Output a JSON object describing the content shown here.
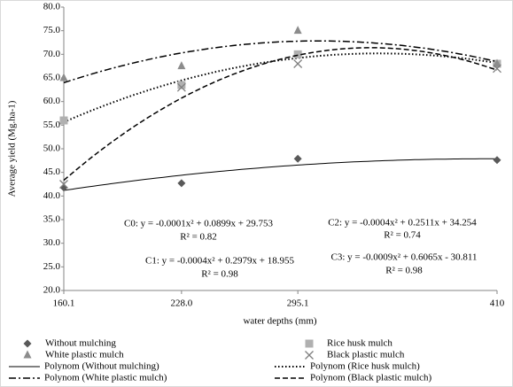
{
  "chart_data": {
    "type": "scatter",
    "x_label": "water depths (mm)",
    "y_label": "Average yield (Mg.ha-1)",
    "x": [
      160.1,
      228.0,
      295.1,
      410
    ],
    "xlim": [
      160.1,
      410
    ],
    "xticks": [
      160.1,
      {
        "value": 228,
        "label": "228.0"
      },
      295.1,
      410
    ],
    "ylim": [
      20,
      80
    ],
    "yticks": [
      {
        "value": 20,
        "label": "20.0"
      },
      {
        "value": 25,
        "label": "25.0"
      },
      {
        "value": 30,
        "label": "30.0"
      },
      {
        "value": 35,
        "label": "35.0"
      },
      {
        "value": 40,
        "label": "40.0"
      },
      {
        "value": 45,
        "label": "45.0"
      },
      {
        "value": 50,
        "label": "50.0"
      },
      {
        "value": 55,
        "label": "55.0"
      },
      {
        "value": 60,
        "label": "60.0"
      },
      {
        "value": 65,
        "label": "65.0"
      },
      {
        "value": 70,
        "label": "70.0"
      },
      {
        "value": 75,
        "label": "75.0"
      },
      {
        "value": 80,
        "label": "80.0"
      }
    ],
    "grid": false,
    "series": [
      {
        "name": "Without mulching",
        "trendline_name": "Polynom (Without mulching)",
        "color": "#595959",
        "marker": "diamond",
        "line_style": "solid",
        "values": [
          41.8,
          42.7,
          47.9,
          47.6
        ]
      },
      {
        "name": "Rice husk mulch",
        "trendline_name": "Polynom (Rice husk mulch)",
        "color": "#b0b0b0",
        "marker": "square",
        "line_style": "dotted",
        "values": [
          56.0,
          63.5,
          70.0,
          68.0
        ]
      },
      {
        "name": "White plastic mulch",
        "trendline_name": "Polynom (White plastic mulch)",
        "color": "#8c8c8c",
        "marker": "triangle",
        "line_style": "dashdot",
        "values": [
          65.0,
          67.5,
          75.0,
          68.0
        ]
      },
      {
        "name": "Black plastic mulch",
        "trendline_name": "Polynom (Black plastic mulch)",
        "color": "#7f7f7f",
        "marker": "x",
        "line_style": "dashed",
        "values": [
          42.5,
          63.0,
          68.0,
          67.0
        ]
      }
    ],
    "annotations": [
      "C0: y = -0.0001x² + 0.0899x + 29.753",
      "R² = 0.82",
      "C1: y = -0.0004x² + 0.2979x + 18.955",
      "R² = 0.98",
      "C2: y = -0.0004x² + 0.2511x + 34.254",
      "R² = 0.74",
      "C3: y = -0.0009x² + 0.6065x - 30.811",
      "R² = 0.98"
    ]
  }
}
